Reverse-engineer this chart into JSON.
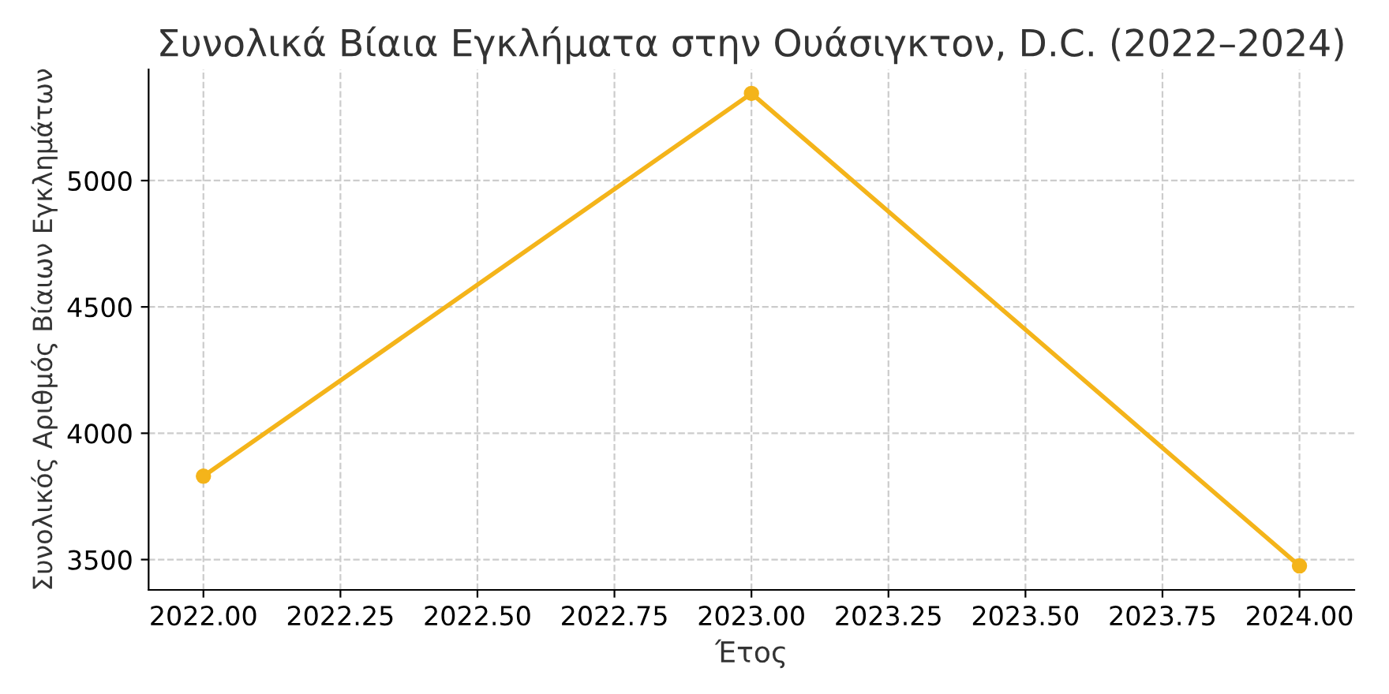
{
  "chart_data": {
    "type": "line",
    "title": "Συνολικά Βίαια Εγκλήματα στην Ουάσιγκτον, D.C. (2022–2024)",
    "xlabel": "Έτος",
    "ylabel": "Συνολικός Αριθμός Βίαιων Εγκλημάτων",
    "x": [
      2022,
      2023,
      2024
    ],
    "series": [
      {
        "color": "#f4b41a",
        "values": [
          3830,
          5345,
          3475
        ]
      }
    ],
    "marker": "circle",
    "line_style": "solid",
    "grid": true,
    "xlim": [
      2021.9,
      2024.1
    ],
    "ylim": [
      3380,
      5440
    ],
    "xticks": [
      {
        "value": 2022,
        "label": "2022.00"
      },
      {
        "value": 2022.25,
        "label": "2022.25"
      },
      {
        "value": 2022.5,
        "label": "2022.50"
      },
      {
        "value": 2022.75,
        "label": "2022.75"
      },
      {
        "value": 2023,
        "label": "2023.00"
      },
      {
        "value": 2023.25,
        "label": "2023.25"
      },
      {
        "value": 2023.5,
        "label": "2023.50"
      },
      {
        "value": 2023.75,
        "label": "2023.75"
      },
      {
        "value": 2024,
        "label": "2024.00"
      }
    ],
    "yticks": [
      3500,
      4000,
      4500,
      5000
    ]
  }
}
